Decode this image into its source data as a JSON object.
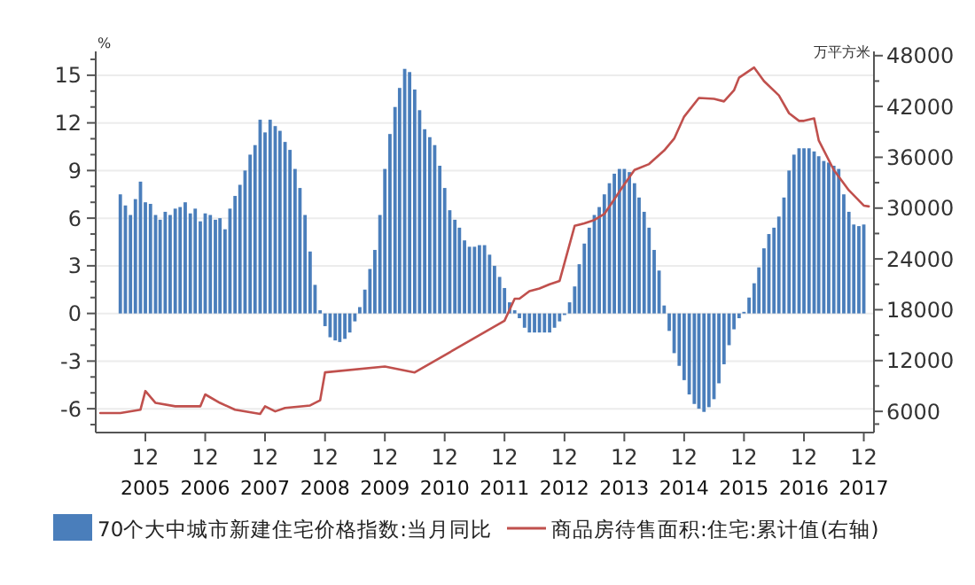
{
  "chart_data": {
    "type": "bar",
    "ylabel": "%",
    "y2label": "万平方米",
    "xlim": [
      "2005-02",
      "2018-02"
    ],
    "xticks": [
      {
        "value": "2005-12",
        "label": "12\n2005"
      },
      {
        "value": "2006-12",
        "label": "12\n2006"
      },
      {
        "value": "2007-12",
        "label": "12\n2007"
      },
      {
        "value": "2008-12",
        "label": "12\n2008"
      },
      {
        "value": "2009-12",
        "label": "12\n2009"
      },
      {
        "value": "2010-12",
        "label": "12\n2010"
      },
      {
        "value": "2011-12",
        "label": "12\n2011"
      },
      {
        "value": "2012-12",
        "label": "12\n2012"
      },
      {
        "value": "2013-12",
        "label": "12\n2013"
      },
      {
        "value": "2014-12",
        "label": "12\n2014"
      },
      {
        "value": "2015-12",
        "label": "12\n2015"
      },
      {
        "value": "2016-12",
        "label": "12\n2016"
      },
      {
        "value": "2017-12",
        "label": "12\n2017"
      }
    ],
    "ylim": [
      -7.5,
      16.5
    ],
    "yticks": [
      {
        "value": -7,
        "label": null
      },
      -6,
      {
        "value": -5,
        "label": null
      },
      {
        "value": -4,
        "label": null
      },
      -3,
      {
        "value": -2,
        "label": null
      },
      {
        "value": -1,
        "label": null
      },
      0,
      {
        "value": 1,
        "label": null
      },
      {
        "value": 2,
        "label": null
      },
      3,
      {
        "value": 4,
        "label": null
      },
      {
        "value": 5,
        "label": null
      },
      6,
      {
        "value": 7,
        "label": null
      },
      {
        "value": 8,
        "label": null
      },
      9,
      {
        "value": 10,
        "label": null
      },
      {
        "value": 11,
        "label": null
      },
      12,
      {
        "value": 13,
        "label": null
      },
      {
        "value": 14,
        "label": null
      },
      15,
      {
        "value": 16,
        "label": null
      }
    ],
    "y2lim": [
      3500,
      48500
    ],
    "y2ticks": [
      {
        "value": 4500,
        "label": null
      },
      6000,
      {
        "value": 9000,
        "label": null
      },
      12000,
      {
        "value": 15000,
        "label": null
      },
      18000,
      {
        "value": 21000,
        "label": null
      },
      24000,
      {
        "value": 27000,
        "label": null
      },
      30000,
      {
        "value": 33000,
        "label": null
      },
      36000,
      {
        "value": 39000,
        "label": null
      },
      42000,
      {
        "value": 45000,
        "label": null
      },
      48000
    ],
    "grid": "y",
    "legend": "bottom",
    "series": [
      {
        "name": "70个大中城市新建住宅价格指数:当月同比",
        "color": "#4a7ebb",
        "x": [
          "2005-07",
          "2005-08",
          "2005-09",
          "2005-10",
          "2005-11",
          "2005-12",
          "2006-01",
          "2006-02",
          "2006-03",
          "2006-04",
          "2006-05",
          "2006-06",
          "2006-07",
          "2006-08",
          "2006-09",
          "2006-10",
          "2006-11",
          "2006-12",
          "2007-01",
          "2007-02",
          "2007-03",
          "2007-04",
          "2007-05",
          "2007-06",
          "2007-07",
          "2007-08",
          "2007-09",
          "2007-10",
          "2007-11",
          "2007-12",
          "2008-01",
          "2008-02",
          "2008-03",
          "2008-04",
          "2008-05",
          "2008-06",
          "2008-07",
          "2008-08",
          "2008-09",
          "2008-10",
          "2008-11",
          "2008-12",
          "2009-01",
          "2009-02",
          "2009-03",
          "2009-04",
          "2009-05",
          "2009-06",
          "2009-07",
          "2009-08",
          "2009-09",
          "2009-10",
          "2009-11",
          "2009-12",
          "2010-01",
          "2010-02",
          "2010-03",
          "2010-04",
          "2010-05",
          "2010-06",
          "2010-07",
          "2010-08",
          "2010-09",
          "2010-10",
          "2010-11",
          "2010-12",
          "2011-01",
          "2011-02",
          "2011-03",
          "2011-04",
          "2011-05",
          "2011-06",
          "2011-07",
          "2011-08",
          "2011-09",
          "2011-10",
          "2011-11",
          "2011-12",
          "2012-01",
          "2012-02",
          "2012-03",
          "2012-04",
          "2012-05",
          "2012-06",
          "2012-07",
          "2012-08",
          "2012-09",
          "2012-10",
          "2012-11",
          "2012-12",
          "2013-01",
          "2013-02",
          "2013-03",
          "2013-04",
          "2013-05",
          "2013-06",
          "2013-07",
          "2013-08",
          "2013-09",
          "2013-10",
          "2013-11",
          "2013-12",
          "2014-01",
          "2014-02",
          "2014-03",
          "2014-04",
          "2014-05",
          "2014-06",
          "2014-07",
          "2014-08",
          "2014-09",
          "2014-10",
          "2014-11",
          "2014-12",
          "2015-01",
          "2015-02",
          "2015-03",
          "2015-04",
          "2015-05",
          "2015-06",
          "2015-07",
          "2015-08",
          "2015-09",
          "2015-10",
          "2015-11",
          "2015-12",
          "2016-01",
          "2016-02",
          "2016-03",
          "2016-04",
          "2016-05",
          "2016-06",
          "2016-07",
          "2016-08",
          "2016-09",
          "2016-10",
          "2016-11",
          "2016-12",
          "2017-01",
          "2017-02",
          "2017-03",
          "2017-04",
          "2017-05",
          "2017-06",
          "2017-07",
          "2017-08",
          "2017-09",
          "2017-10",
          "2017-11",
          "2017-12"
        ],
        "values": [
          7.5,
          6.8,
          6.2,
          7.2,
          8.3,
          7.0,
          6.9,
          6.2,
          5.9,
          6.4,
          6.2,
          6.6,
          6.7,
          7.0,
          6.3,
          6.6,
          5.8,
          6.3,
          6.2,
          5.9,
          6.0,
          5.3,
          6.6,
          7.4,
          8.1,
          9.0,
          10.0,
          10.6,
          12.2,
          11.4,
          12.2,
          11.8,
          11.5,
          10.8,
          10.3,
          9.1,
          7.9,
          6.2,
          3.9,
          1.8,
          0.2,
          -0.8,
          -1.5,
          -1.7,
          -1.8,
          -1.6,
          -1.2,
          -0.5,
          0.4,
          1.5,
          2.8,
          4.0,
          6.2,
          9.1,
          11.3,
          13.0,
          14.2,
          15.4,
          15.2,
          14.1,
          12.8,
          11.6,
          11.1,
          10.6,
          9.3,
          7.9,
          6.5,
          5.9,
          5.4,
          4.6,
          4.2,
          4.2,
          4.3,
          4.3,
          3.7,
          3.0,
          2.3,
          1.6,
          0.7,
          0.2,
          -0.3,
          -0.9,
          -1.2,
          -1.2,
          -1.2,
          -1.2,
          -1.2,
          -0.9,
          -0.5,
          -0.1,
          0.7,
          1.7,
          3.1,
          4.4,
          5.4,
          6.2,
          6.7,
          7.5,
          8.2,
          8.8,
          9.1,
          9.1,
          8.9,
          8.2,
          7.3,
          6.4,
          5.4,
          4.0,
          2.7,
          0.5,
          -1.1,
          -2.5,
          -3.3,
          -4.2,
          -5.1,
          -5.7,
          -6.0,
          -6.2,
          -5.9,
          -5.4,
          -4.4,
          -3.2,
          -2.0,
          -1.0,
          -0.3,
          0.1,
          1.0,
          1.9,
          2.9,
          4.1,
          5.0,
          5.4,
          6.1,
          7.3,
          9.0,
          10.0,
          10.4,
          10.4,
          10.4,
          10.2,
          9.9,
          9.6,
          9.5,
          9.3,
          9.1,
          7.5,
          6.4,
          5.6,
          5.5,
          5.6
        ]
      },
      {
        "name": "商品房待售面积:住宅:累计值(右轴)",
        "type": "line",
        "axis": "y2",
        "color": "#c0504d",
        "x": [
          "2005-03",
          "2005-07",
          "2005-11",
          "2005-12",
          "2006-02",
          "2006-06",
          "2006-11",
          "2006-12",
          "2007-03",
          "2007-06",
          "2007-11",
          "2007-12",
          "2008-02",
          "2008-04",
          "2008-09",
          "2008-11",
          "2008-12",
          "2009-12",
          "2010-06",
          "2011-12",
          "2012-02",
          "2012-03",
          "2012-05",
          "2012-07",
          "2012-09",
          "2012-11",
          "2013-02",
          "2013-04",
          "2013-06",
          "2013-08",
          "2013-12",
          "2014-02",
          "2014-05",
          "2014-08",
          "2014-10",
          "2014-12",
          "2015-03",
          "2015-06",
          "2015-08",
          "2015-10",
          "2015-11",
          "2016-02",
          "2016-04",
          "2016-07",
          "2016-09",
          "2016-11",
          "2016-12",
          "2017-02",
          "2017-03",
          "2017-06",
          "2017-09",
          "2017-12",
          "2018-01"
        ],
        "values": [
          5800,
          5800,
          6200,
          8400,
          7000,
          6600,
          6600,
          8000,
          7000,
          6200,
          5700,
          6600,
          6000,
          6400,
          6700,
          7300,
          10600,
          11300,
          10600,
          16700,
          19300,
          19300,
          20200,
          20500,
          21000,
          21400,
          27900,
          28200,
          28600,
          29300,
          32800,
          34500,
          35200,
          36800,
          38200,
          40800,
          43000,
          42900,
          42600,
          43900,
          45400,
          46600,
          45000,
          43300,
          41200,
          40300,
          40300,
          40600,
          38000,
          34500,
          32100,
          30300,
          30200
        ]
      }
    ]
  }
}
